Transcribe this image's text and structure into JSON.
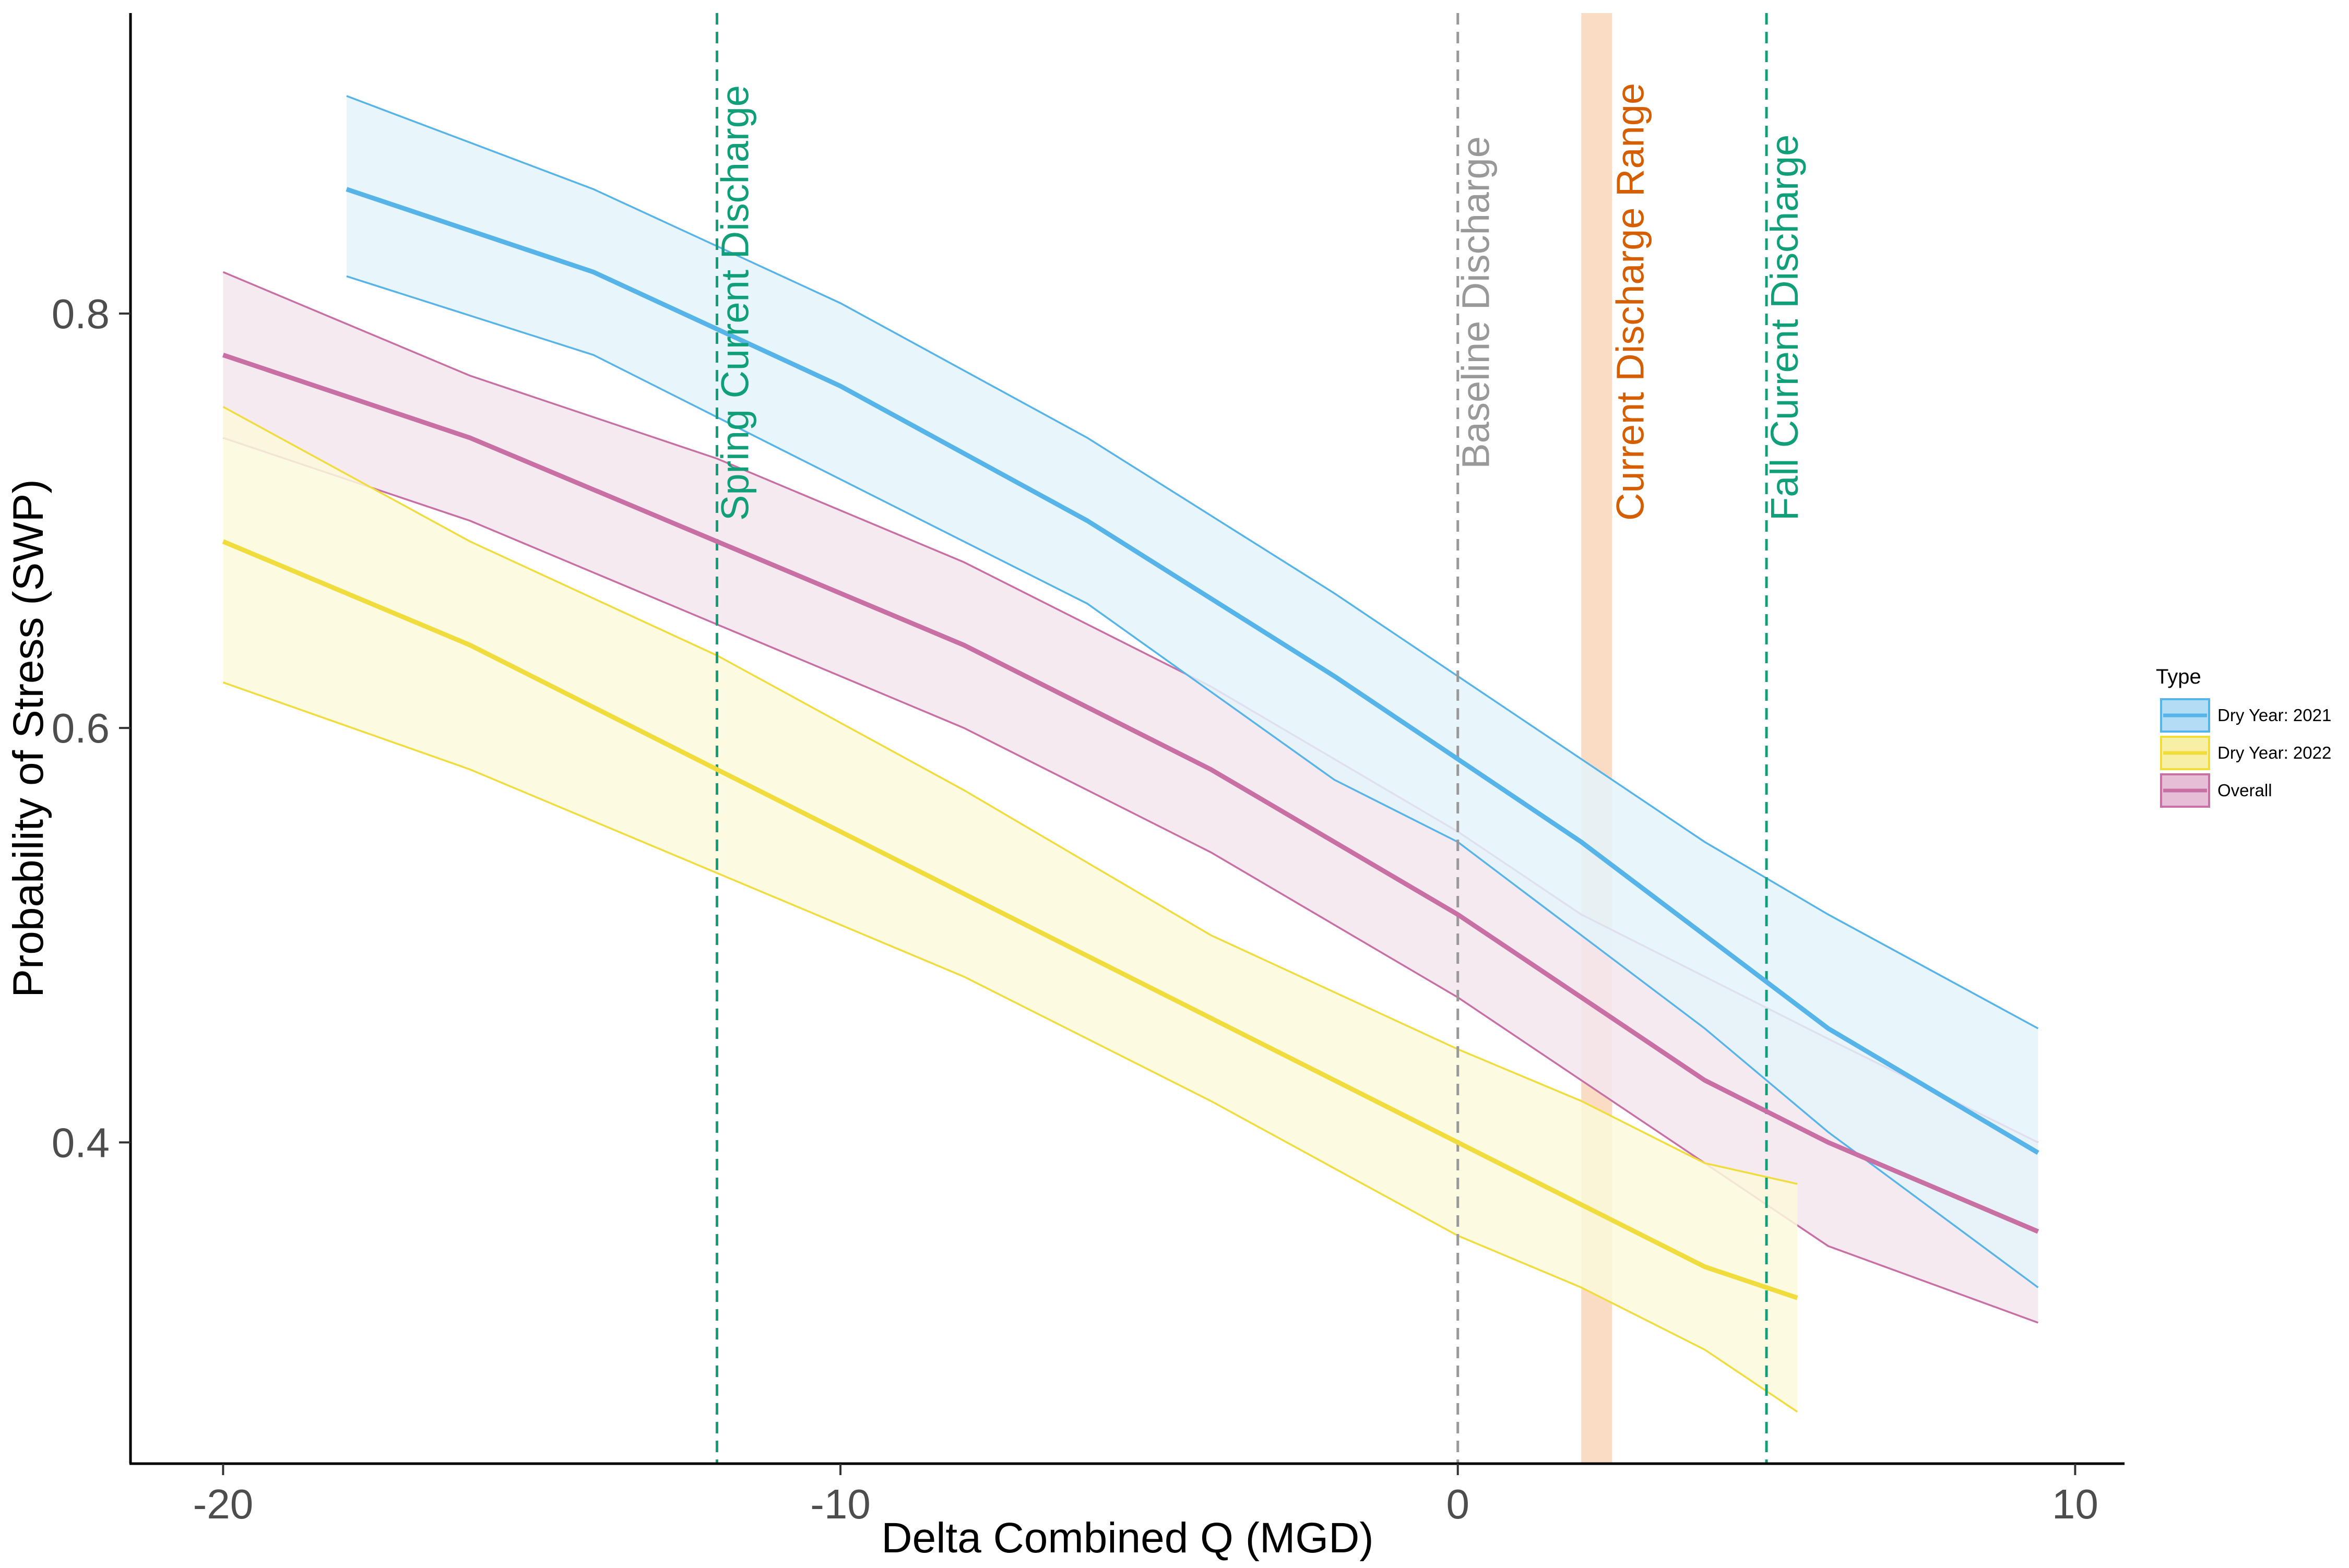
{
  "chart_data": {
    "type": "line",
    "title": "",
    "xlabel": "Delta Combined Q (MGD)",
    "ylabel": "Probability of Stress (SWP)",
    "xlim": [
      -21.5,
      10.8
    ],
    "ylim": [
      0.245,
      0.945
    ],
    "xticks": [
      -20,
      -10,
      0,
      10
    ],
    "xtick_labels": [
      "-20",
      "-10",
      "0",
      "10"
    ],
    "yticks": [
      0.4,
      0.6,
      0.8
    ],
    "ytick_labels": [
      "0.4",
      "0.6",
      "0.8"
    ],
    "grid": false,
    "legend": {
      "title": "Type",
      "position": "right"
    },
    "series": [
      {
        "name": "Overall",
        "color": "#c86fa3",
        "fill": "#f5e6ee",
        "x": [
          -20,
          -16,
          -12,
          -8,
          -4,
          0,
          2,
          4,
          6,
          9.4
        ],
        "y": [
          0.78,
          0.74,
          0.69,
          0.64,
          0.58,
          0.51,
          0.47,
          0.43,
          0.4,
          0.357
        ],
        "lower": [
          0.74,
          0.7,
          0.65,
          0.6,
          0.54,
          0.47,
          0.43,
          0.39,
          0.35,
          0.313
        ],
        "upper": [
          0.82,
          0.77,
          0.73,
          0.68,
          0.62,
          0.55,
          0.51,
          0.48,
          0.45,
          0.4
        ]
      },
      {
        "name": "Dry Year: 2022",
        "color": "#f0dc3c",
        "fill": "#fcf9dc",
        "x": [
          -20,
          -16,
          -12,
          -8,
          -4,
          0,
          2,
          4,
          5.5
        ],
        "y": [
          0.69,
          0.64,
          0.58,
          0.52,
          0.46,
          0.4,
          0.37,
          0.34,
          0.325
        ],
        "lower": [
          0.622,
          0.58,
          0.53,
          0.48,
          0.42,
          0.355,
          0.33,
          0.3,
          0.27
        ],
        "upper": [
          0.755,
          0.69,
          0.635,
          0.57,
          0.5,
          0.445,
          0.42,
          0.39,
          0.38
        ]
      },
      {
        "name": "Dry Year: 2021",
        "color": "#56b4e9",
        "fill": "#e4f3fa",
        "x": [
          -18,
          -14,
          -10,
          -6,
          -2,
          0,
          2,
          4,
          6,
          9.4
        ],
        "y": [
          0.86,
          0.82,
          0.765,
          0.7,
          0.625,
          0.585,
          0.545,
          0.5,
          0.455,
          0.395
        ],
        "lower": [
          0.818,
          0.78,
          0.72,
          0.66,
          0.575,
          0.545,
          0.5,
          0.455,
          0.405,
          0.33
        ],
        "upper": [
          0.905,
          0.86,
          0.805,
          0.74,
          0.665,
          0.625,
          0.585,
          0.545,
          0.51,
          0.455
        ]
      }
    ],
    "reference_lines": [
      {
        "x": -12,
        "label": "Spring Current Discharge",
        "color": "#119f79"
      },
      {
        "x": 0,
        "label": "Baseline Discharge",
        "color": "#999999"
      },
      {
        "x": 5,
        "label": "Fall Current Discharge",
        "color": "#119f79"
      }
    ],
    "shaded_range": {
      "x0": 2,
      "x1": 2.5,
      "label": "Current Discharge Range",
      "color": "#f9dcc3",
      "label_color": "#d55e00"
    }
  },
  "legend": {
    "title": "Type",
    "entries": [
      {
        "label": "Dry Year: 2021",
        "series": "Dry Year: 2021"
      },
      {
        "label": "Dry Year: 2022",
        "series": "Dry Year: 2022"
      },
      {
        "label": "Overall",
        "series": "Overall"
      }
    ]
  }
}
